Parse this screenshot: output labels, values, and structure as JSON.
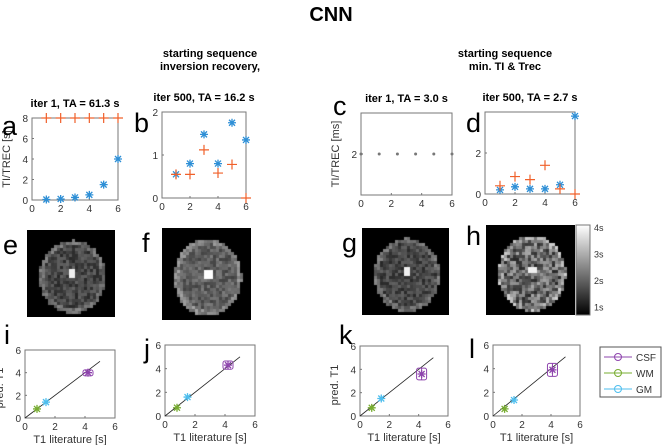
{
  "title": "CNN",
  "columns": [
    {
      "line1": "starting sequence",
      "line2": "inversion recovery,"
    },
    {
      "line1": "starting sequence",
      "line2": "min. TI & Trec"
    }
  ],
  "colors": {
    "ti": "#2e8fd6",
    "trec": "#f0602a",
    "c_points": "#777777",
    "CSF": "#8e44ad",
    "WM": "#77ac30",
    "GM": "#4dbeee"
  },
  "colorbar": {
    "ticks": [
      "4s",
      "3s",
      "2s",
      "1s"
    ],
    "colormap": "gray",
    "range": [
      0,
      4
    ]
  },
  "image_panels": [
    {
      "letter": "e"
    },
    {
      "letter": "f"
    },
    {
      "letter": "g"
    },
    {
      "letter": "h"
    }
  ],
  "chart_data": [
    {
      "letter": "a",
      "type": "scatter",
      "title": "iter 1, TA = 61.3 s",
      "ylabel": "TI/TREC [s]",
      "xlim": [
        0,
        6
      ],
      "ylim": [
        0,
        8
      ],
      "xticks": [
        "0",
        "2",
        "4",
        "6"
      ],
      "yticks": [
        "0",
        "2",
        "4",
        "6",
        "8"
      ],
      "series": [
        {
          "marker": "star",
          "color": "ti",
          "x": [
            1,
            2,
            3,
            4,
            5,
            6
          ],
          "y": [
            0.05,
            0.1,
            0.25,
            0.5,
            1.5,
            4
          ]
        },
        {
          "marker": "plus",
          "color": "trec",
          "x": [
            1,
            2,
            3,
            4,
            5,
            6
          ],
          "y": [
            8,
            8,
            8,
            8,
            8,
            8
          ]
        }
      ]
    },
    {
      "letter": "b",
      "type": "scatter",
      "title": "iter 500, TA = 16.2 s",
      "ylabel": "",
      "xlim": [
        0,
        6
      ],
      "ylim": [
        0,
        2
      ],
      "xticks": [
        "0",
        "2",
        "4",
        "6"
      ],
      "yticks": [
        "0",
        "1",
        "2"
      ],
      "series": [
        {
          "marker": "star",
          "color": "ti",
          "x": [
            1,
            2,
            3,
            4,
            5,
            6
          ],
          "y": [
            0.55,
            0.8,
            1.48,
            0.8,
            1.75,
            1.35
          ]
        },
        {
          "marker": "plus",
          "color": "trec",
          "x": [
            1,
            2,
            3,
            4,
            5,
            6
          ],
          "y": [
            0.55,
            0.55,
            1.12,
            0.58,
            0.78,
            0
          ]
        }
      ]
    },
    {
      "letter": "c",
      "type": "scatter",
      "title": "iter 1, TA = 3.0 s",
      "ylabel": "TI/TREC [ms]",
      "xlim": [
        0,
        6
      ],
      "ylim": [
        0,
        4
      ],
      "xticks": [
        "0",
        "2",
        "4",
        "6"
      ],
      "yticks": [
        "2"
      ],
      "series": [
        {
          "marker": "dot",
          "color": "c_points",
          "x": [
            0,
            1.2,
            2.4,
            3.6,
            4.8,
            6
          ],
          "y": [
            2,
            2,
            2,
            2,
            2,
            2
          ]
        }
      ]
    },
    {
      "letter": "d",
      "type": "scatter",
      "title": "iter 500, TA = 2.7 s",
      "ylabel": "",
      "xlim": [
        0,
        6
      ],
      "ylim": [
        0,
        4
      ],
      "xticks": [
        "0",
        "2",
        "4",
        "6"
      ],
      "yticks": [
        "0",
        "2"
      ],
      "series": [
        {
          "marker": "star",
          "color": "ti",
          "x": [
            1,
            2,
            3,
            4,
            5,
            6
          ],
          "y": [
            0.2,
            0.35,
            0.25,
            0.25,
            0.45,
            3.8
          ]
        },
        {
          "marker": "plus",
          "color": "trec",
          "x": [
            1,
            2,
            3,
            4,
            5,
            6
          ],
          "y": [
            0.4,
            0.85,
            0.7,
            1.4,
            0.25,
            0
          ]
        }
      ]
    },
    {
      "letter": "i",
      "type": "scatter",
      "xlabel": "T1 literature [s]",
      "ylabel": "pred. T1",
      "xlim": [
        0,
        6
      ],
      "ylim": [
        0,
        6
      ],
      "xticks": [
        "0",
        "2",
        "4",
        "6"
      ],
      "yticks": [
        "0",
        "2",
        "4",
        "6"
      ],
      "identity_line": [
        0,
        5
      ],
      "series": [
        {
          "name": "CSF",
          "x": [
            4.2
          ],
          "y": [
            4.0
          ],
          "err": 0.25
        },
        {
          "name": "WM",
          "x": [
            0.8
          ],
          "y": [
            0.8
          ],
          "err": 0.1
        },
        {
          "name": "GM",
          "x": [
            1.4
          ],
          "y": [
            1.4
          ],
          "err": 0.1
        }
      ]
    },
    {
      "letter": "j",
      "type": "scatter",
      "xlabel": "T1 literature [s]",
      "ylabel": "",
      "xlim": [
        0,
        6
      ],
      "ylim": [
        0,
        6
      ],
      "xticks": [
        "0",
        "2",
        "4",
        "6"
      ],
      "yticks": [
        "0",
        "2",
        "4",
        "6"
      ],
      "identity_line": [
        0,
        5
      ],
      "series": [
        {
          "name": "CSF",
          "x": [
            4.2
          ],
          "y": [
            4.3
          ],
          "err": 0.35
        },
        {
          "name": "WM",
          "x": [
            0.8
          ],
          "y": [
            0.7
          ],
          "err": 0.1
        },
        {
          "name": "GM",
          "x": [
            1.5
          ],
          "y": [
            1.6
          ],
          "err": 0.1
        }
      ]
    },
    {
      "letter": "k",
      "type": "scatter",
      "xlabel": "T1 literature [s]",
      "ylabel": "pred. T1",
      "xlim": [
        0,
        6
      ],
      "ylim": [
        0,
        6
      ],
      "xticks": [
        "0",
        "2",
        "4",
        "6"
      ],
      "yticks": [
        "0",
        "2",
        "4",
        "6"
      ],
      "identity_line": [
        0,
        5
      ],
      "series": [
        {
          "name": "CSF",
          "x": [
            4.2
          ],
          "y": [
            3.6
          ],
          "err": 0.5
        },
        {
          "name": "WM",
          "x": [
            0.8
          ],
          "y": [
            0.7
          ],
          "err": 0.2
        },
        {
          "name": "GM",
          "x": [
            1.45
          ],
          "y": [
            1.5
          ],
          "err": 0.25
        }
      ]
    },
    {
      "letter": "l",
      "type": "scatter",
      "xlabel": "T1 literature [s]",
      "ylabel": "",
      "xlim": [
        0,
        6
      ],
      "ylim": [
        0,
        6
      ],
      "xticks": [
        "0",
        "2",
        "4",
        "6"
      ],
      "yticks": [
        "0",
        "2",
        "4",
        "6"
      ],
      "identity_line": [
        0,
        5
      ],
      "series": [
        {
          "name": "CSF",
          "x": [
            4.1
          ],
          "y": [
            3.9
          ],
          "err": 0.55
        },
        {
          "name": "WM",
          "x": [
            0.8
          ],
          "y": [
            0.6
          ],
          "err": 0.2
        },
        {
          "name": "GM",
          "x": [
            1.45
          ],
          "y": [
            1.35
          ],
          "err": 0.2
        }
      ]
    }
  ],
  "legend": {
    "entries": [
      "CSF",
      "WM",
      "GM"
    ]
  }
}
